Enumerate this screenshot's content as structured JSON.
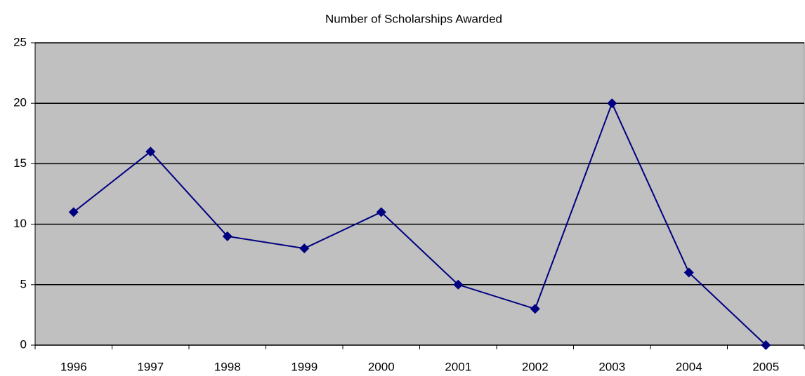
{
  "chart_data": {
    "type": "line",
    "title": "Number of Scholarships Awarded",
    "categories": [
      "1996",
      "1997",
      "1998",
      "1999",
      "2000",
      "2001",
      "2002",
      "2003",
      "2004",
      "2005"
    ],
    "values": [
      11,
      16,
      9,
      8,
      11,
      5,
      3,
      20,
      6,
      0
    ],
    "color": "#000080",
    "background": "#c0c0c0",
    "ylim": [
      0,
      25
    ],
    "yticks": [
      0,
      5,
      10,
      15,
      20,
      25
    ],
    "grid": true
  }
}
